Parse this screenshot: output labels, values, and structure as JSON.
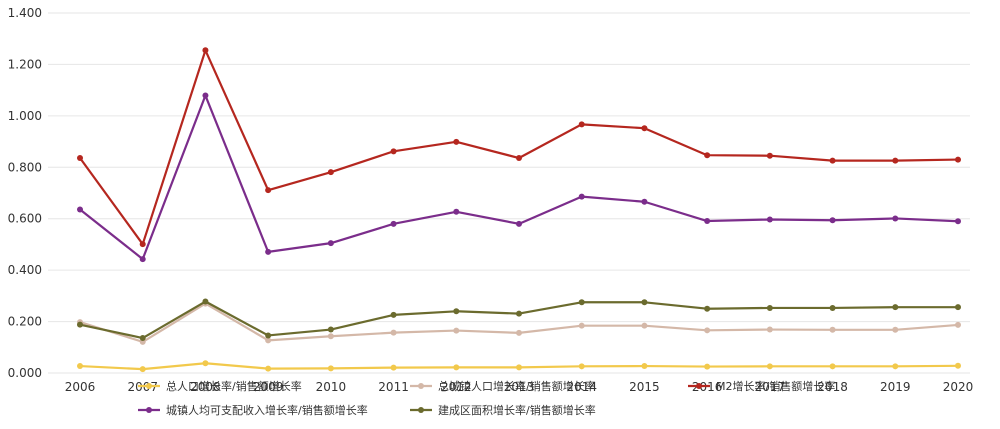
{
  "chart_data": {
    "type": "line",
    "title": "",
    "xlabel": "",
    "ylabel": "",
    "x": [
      "2006",
      "2007",
      "2008",
      "2009",
      "2010",
      "2011",
      "2012",
      "2013",
      "2014",
      "2015",
      "2016",
      "2017",
      "2018",
      "2019",
      "2020"
    ],
    "y_ticks": [
      "0.000",
      "0.200",
      "0.400",
      "0.600",
      "0.800",
      "1.000",
      "1.200",
      "1.400"
    ],
    "ylim": [
      0,
      1.4
    ],
    "grid": true,
    "legend_position": "bottom",
    "series": [
      {
        "name": "总人口增长率/销售额增长率",
        "color": "#f2c94c",
        "values": [
          0.027,
          0.015,
          0.038,
          0.017,
          0.018,
          0.021,
          0.022,
          0.022,
          0.026,
          0.027,
          0.025,
          0.026,
          0.026,
          0.026,
          0.028
        ]
      },
      {
        "name": "城镇人均可支配收入增长率/销售额增长率",
        "color": "#7b2d8b",
        "values": [
          0.636,
          0.443,
          1.079,
          0.471,
          0.505,
          0.58,
          0.627,
          0.58,
          0.686,
          0.666,
          0.591,
          0.597,
          0.594,
          0.601,
          0.59
        ]
      },
      {
        "name": "总城镇人口增长率/销售额增长率",
        "color": "#d4b8a8",
        "values": [
          0.198,
          0.121,
          0.27,
          0.127,
          0.143,
          0.157,
          0.165,
          0.156,
          0.184,
          0.184,
          0.166,
          0.169,
          0.168,
          0.168,
          0.187
        ]
      },
      {
        "name": "建成区面积增长率/销售额增长率",
        "color": "#6b6b2e",
        "values": [
          0.188,
          0.136,
          0.278,
          0.146,
          0.169,
          0.226,
          0.24,
          0.231,
          0.275,
          0.275,
          0.25,
          0.253,
          0.253,
          0.256,
          0.256
        ]
      },
      {
        "name": "M2增长率/销售额增长率",
        "color": "#b5271f",
        "values": [
          0.836,
          0.501,
          1.255,
          0.711,
          0.781,
          0.862,
          0.899,
          0.836,
          0.967,
          0.952,
          0.847,
          0.845,
          0.826,
          0.826,
          0.83
        ]
      }
    ]
  }
}
